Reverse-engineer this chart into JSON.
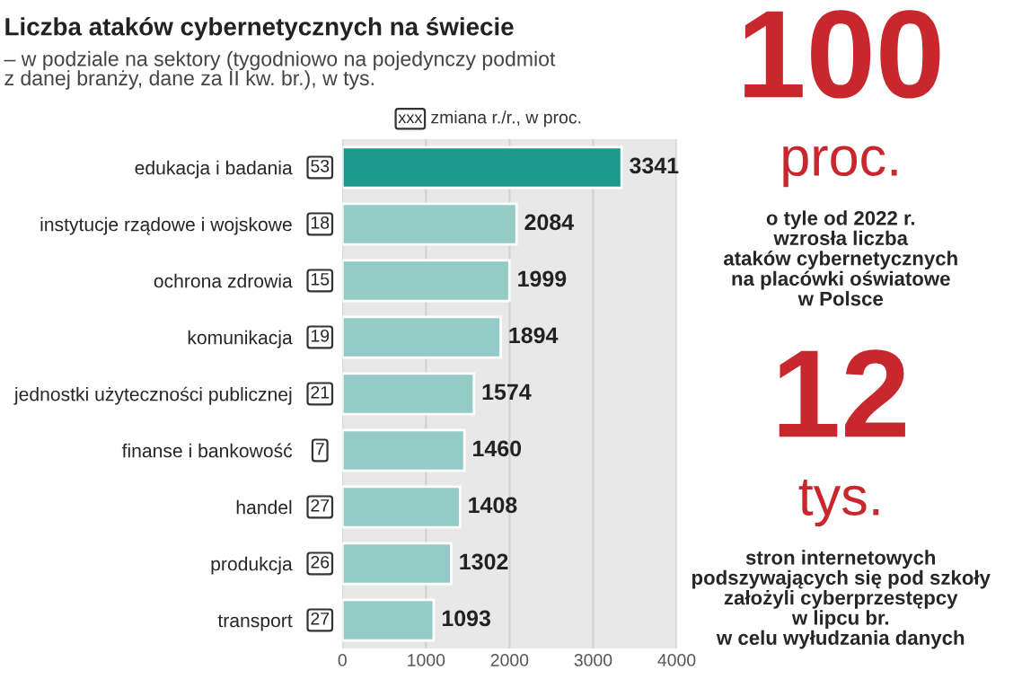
{
  "chart_data": {
    "type": "bar",
    "orientation": "horizontal",
    "title": "Liczba ataków cybernetycznych na świecie",
    "subtitle": "– w podziale na sektory (tygodniowo na pojedynczy podmiot\nz danej branży, dane za II kw. br.), w tys.",
    "categories": [
      "edukacja i badania",
      "instytucje rządowe i wojskowe",
      "ochrona zdrowia",
      "komunikacja",
      "jednostki użyteczności publicznej",
      "finanse i bankowość",
      "handel",
      "produkcja",
      "transport"
    ],
    "values": [
      3341,
      2084,
      1999,
      1894,
      1574,
      1460,
      1408,
      1302,
      1093
    ],
    "colors": [
      "#1c998b",
      "#94cbc6",
      "#94cbc6",
      "#94cbc6",
      "#94cbc6",
      "#94cbc6",
      "#94cbc6",
      "#94cbc6",
      "#94cbc6"
    ],
    "data_labels": true,
    "xlim": [
      0,
      4000
    ],
    "xticks": [
      0,
      1000,
      2000,
      3000,
      4000
    ],
    "grid": "x",
    "annotations": [
      "53",
      "18",
      "15",
      "19",
      "21",
      "7",
      "27",
      "26",
      "27",
      "xxx",
      "zmiana r./r., w proc.",
      "100",
      "proc.",
      "o tyle od 2022 r.\nwzrosła liczba\nataków cybernetycznych\nna placówki oświatowe\nw Polsce",
      "12",
      "tys.",
      "stron internetowych\npodszywających się pod szkoły\nzałożyli cyberprzestępcy\nw lipcu br.\nw celu wyłudzania danych"
    ]
  }
}
